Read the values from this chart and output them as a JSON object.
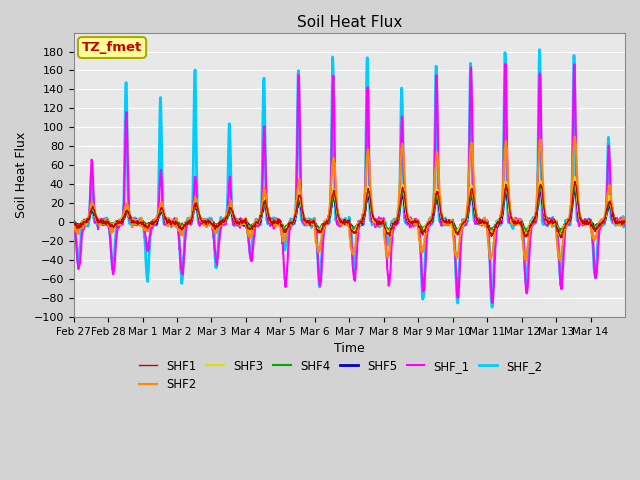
{
  "title": "Soil Heat Flux",
  "xlabel": "Time",
  "ylabel": "Soil Heat Flux",
  "ylim": [
    -100,
    200
  ],
  "yticks": [
    -100,
    -80,
    -60,
    -40,
    -20,
    0,
    20,
    40,
    60,
    80,
    100,
    120,
    140,
    160,
    180
  ],
  "plot_bg_color": "#e8e8e8",
  "fig_bg_color": "#d3d3d3",
  "series": [
    "SHF1",
    "SHF2",
    "SHF3",
    "SHF4",
    "SHF5",
    "SHF_1",
    "SHF_2"
  ],
  "colors": {
    "SHF1": "#cc0000",
    "SHF2": "#ff8800",
    "SHF3": "#dddd00",
    "SHF4": "#00aa00",
    "SHF5": "#0000cc",
    "SHF_1": "#ff00ff",
    "SHF_2": "#00ccff"
  },
  "linewidths": {
    "SHF1": 1.0,
    "SHF2": 1.5,
    "SHF3": 1.5,
    "SHF4": 1.5,
    "SHF5": 2.0,
    "SHF_1": 1.5,
    "SHF_2": 2.0
  },
  "annotation_text": "TZ_fmet",
  "annotation_bg": "#ffff99",
  "annotation_border": "#aaaa00",
  "annotation_color": "#cc0000",
  "x_ticklabels": [
    "Feb 27",
    "Feb 28",
    "Mar 1",
    "Mar 2",
    "Mar 3",
    "Mar 4",
    "Mar 5",
    "Mar 6",
    "Mar 7",
    "Mar 8",
    "Mar 9",
    "Mar 10",
    "Mar 11",
    "Mar 12",
    "Mar 13",
    "Mar 14"
  ],
  "n_days": 16,
  "points_per_day": 96,
  "seed": 12345
}
